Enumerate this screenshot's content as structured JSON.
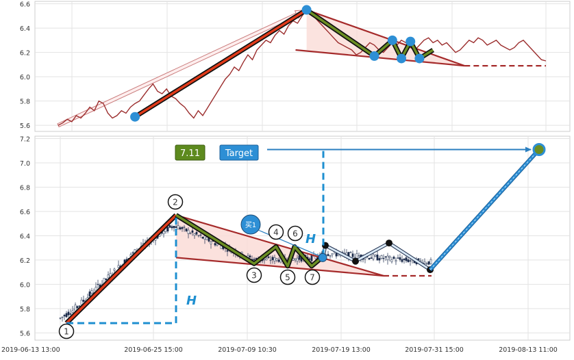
{
  "chart_data": [
    {
      "type": "line",
      "panel": "top",
      "ylim": [
        5.55,
        6.62
      ],
      "y_ticks": [
        "5.6",
        "5.8",
        "6.0",
        "6.2",
        "6.4",
        "6.6"
      ],
      "grid": true,
      "colors": {
        "price": "#9b2d2d",
        "wave": "#6b8e23",
        "rise": "#e03a1a",
        "point": "#2d8fd5",
        "fill": "#fadcd7"
      },
      "series": [
        {
          "values": [
            5.6,
            5.62,
            5.65,
            5.63,
            5.68,
            5.66,
            5.7,
            5.75,
            5.72,
            5.8,
            5.78,
            5.7,
            5.66,
            5.68,
            5.72,
            5.7,
            5.75,
            5.78,
            5.8,
            5.85,
            5.9,
            5.94,
            5.88,
            5.86,
            5.9,
            5.84,
            5.82,
            5.78,
            5.75,
            5.7,
            5.66,
            5.72,
            5.68,
            5.74,
            5.8,
            5.86,
            5.92,
            5.98,
            6.02,
            6.08,
            6.05,
            6.12,
            6.18,
            6.14,
            6.22,
            6.26,
            6.3,
            6.28,
            6.34,
            6.38,
            6.35,
            6.42,
            6.46,
            6.44,
            6.5,
            6.55,
            6.52,
            6.48,
            6.44,
            6.4,
            6.36,
            6.32,
            6.28,
            6.26,
            6.24,
            6.22,
            6.18,
            6.2,
            6.24,
            6.28,
            6.26,
            6.22,
            6.2,
            6.24,
            6.28,
            6.26,
            6.3,
            6.28,
            6.24,
            6.22,
            6.26,
            6.3,
            6.32,
            6.28,
            6.3,
            6.26,
            6.28,
            6.24,
            6.2,
            6.22,
            6.26,
            6.3,
            6.28,
            6.32,
            6.3,
            6.26,
            6.28,
            6.3,
            6.26,
            6.24,
            6.22,
            6.24,
            6.28,
            6.3,
            6.26,
            6.22,
            6.18,
            6.14,
            6.13
          ]
        }
      ],
      "pattern_points": [
        {
          "index": 17,
          "y": 5.67
        },
        {
          "index": 55,
          "y": 6.55
        },
        {
          "index": 70,
          "y": 6.17
        },
        {
          "index": 74,
          "y": 6.3
        },
        {
          "index": 76,
          "y": 6.15
        },
        {
          "index": 78,
          "y": 6.29
        },
        {
          "index": 80,
          "y": 6.15
        }
      ]
    },
    {
      "type": "candlestick",
      "panel": "bottom",
      "ylim": [
        5.54,
        7.22
      ],
      "y_ticks": [
        "5.6",
        "5.8",
        "6.0",
        "6.2",
        "6.4",
        "6.6",
        "6.8",
        "7.0",
        "7.2"
      ],
      "x_labels": [
        "2019-06-13 13:00",
        "2019-06-25 15:00",
        "2019-07-09 10:30",
        "2019-07-19 13:00",
        "2019-07-31 15:00",
        "2019-08-13 11:00"
      ],
      "grid": true,
      "wave_points": [
        {
          "label": "1",
          "y": 5.68
        },
        {
          "label": "2",
          "y": 6.57
        },
        {
          "label": "3",
          "y": 6.17
        },
        {
          "label": "4",
          "y": 6.31
        },
        {
          "label": "5",
          "y": 6.15
        },
        {
          "label": "6",
          "y": 6.31
        },
        {
          "label": "7",
          "y": 6.15
        }
      ],
      "projection_points": [
        6.25,
        6.32,
        6.19,
        6.34,
        6.12
      ],
      "target_value": 7.11,
      "target_value_label": "7.11",
      "target_button_label": "Target",
      "buy_label": "买1",
      "height_label": "H",
      "colors": {
        "candle_up": "#ffffff",
        "candle_down": "#1a2a4a",
        "wave": "#6b8e23",
        "rise": "#e03a1a",
        "projection": "#2d8fd5",
        "dash": "#1e8fd0",
        "resistance": "#a52a2a"
      }
    }
  ]
}
